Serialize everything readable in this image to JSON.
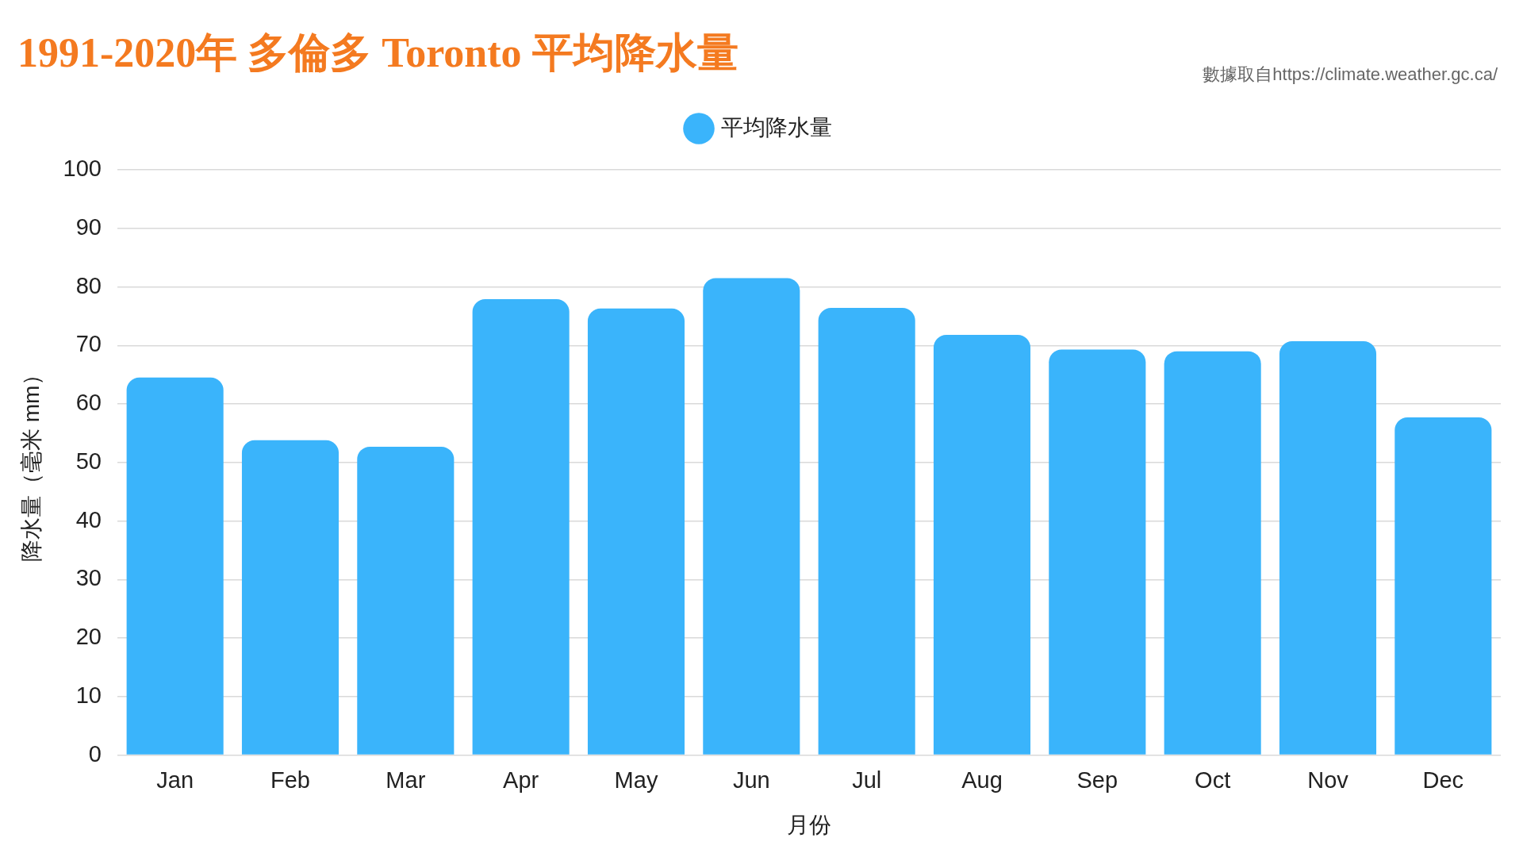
{
  "chart_data": {
    "type": "bar",
    "title": "1991-2020年 多倫多 Toronto 平均降水量",
    "xlabel": "月份",
    "ylabel": "降水量（毫米 mm）",
    "annotations": [
      "數據取自https://climate.weather.gc.ca/"
    ],
    "categories": [
      "Jan",
      "Feb",
      "Mar",
      "Apr",
      "May",
      "Jun",
      "Jul",
      "Aug",
      "Sep",
      "Oct",
      "Nov",
      "Dec"
    ],
    "series": [
      {
        "name": "平均降水量",
        "color": "#3ab4fb",
        "values": [
          64.5,
          53.8,
          52.7,
          77.9,
          76.3,
          81.5,
          76.4,
          71.8,
          69.3,
          69.0,
          70.7,
          57.7
        ]
      }
    ],
    "ylim": [
      0,
      100
    ],
    "yticks": [
      0,
      10,
      20,
      30,
      40,
      50,
      60,
      70,
      80,
      90,
      100
    ],
    "grid": "y",
    "legend": "top"
  }
}
